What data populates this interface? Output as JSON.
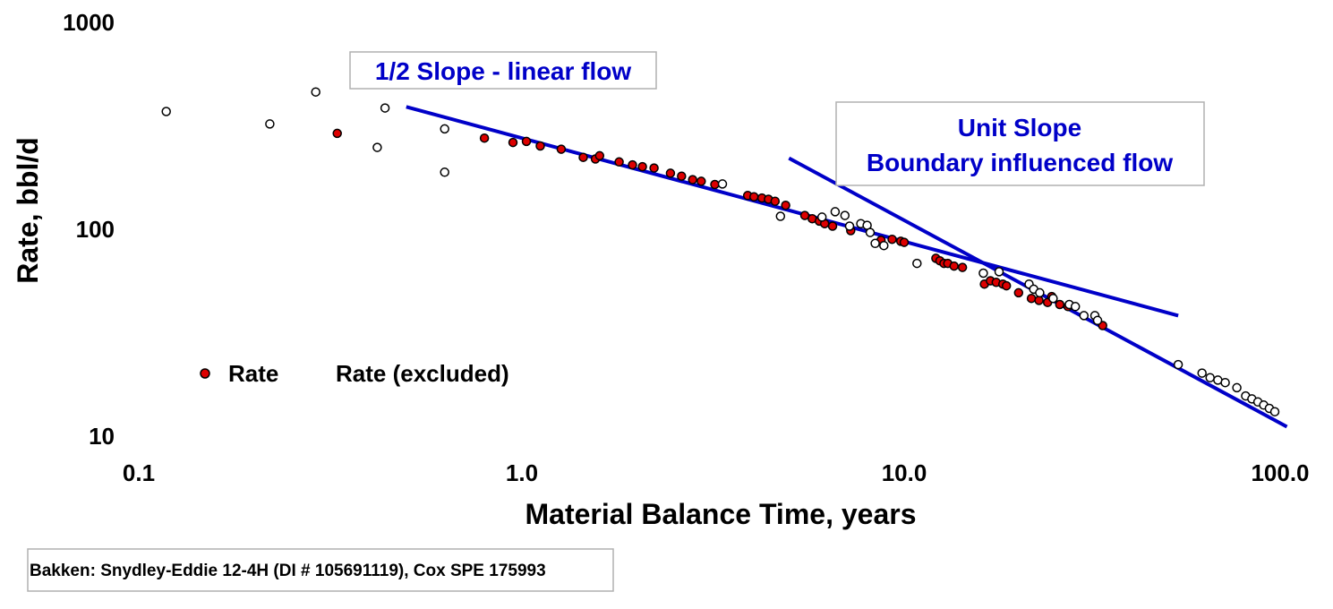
{
  "chart_data": {
    "type": "scatter",
    "xlabel": "Material Balance Time, years",
    "ylabel": "Rate, bbl/d",
    "x_scale": "log",
    "y_scale": "log",
    "xlim": [
      0.1,
      100.0
    ],
    "ylim": [
      10,
      1000
    ],
    "x_ticks": [
      "0.1",
      "1.0",
      "10.0",
      "100.0"
    ],
    "y_ticks": [
      "10",
      "100",
      "1000"
    ],
    "grid": false,
    "legend_position": "bottom-left",
    "colors": {
      "rate": "#dd0000",
      "excluded": "#ffffff",
      "line": "#0000c8"
    },
    "series": [
      {
        "name": "Rate",
        "marker": "filled-circle",
        "points": [
          [
            0.33,
            290
          ],
          [
            0.8,
            275
          ],
          [
            0.95,
            262
          ],
          [
            1.03,
            265
          ],
          [
            1.12,
            252
          ],
          [
            1.27,
            243
          ],
          [
            1.45,
            222
          ],
          [
            1.56,
            218
          ],
          [
            1.6,
            226
          ],
          [
            1.8,
            211
          ],
          [
            1.95,
            204
          ],
          [
            2.07,
            200
          ],
          [
            2.22,
            197
          ],
          [
            2.45,
            186
          ],
          [
            2.62,
            180
          ],
          [
            2.8,
            173
          ],
          [
            2.95,
            170
          ],
          [
            3.2,
            164
          ],
          [
            3.9,
            145
          ],
          [
            4.05,
            143
          ],
          [
            4.25,
            141
          ],
          [
            4.42,
            139
          ],
          [
            4.6,
            136
          ],
          [
            4.9,
            130
          ],
          [
            5.5,
            116
          ],
          [
            5.75,
            112
          ],
          [
            6.0,
            109
          ],
          [
            6.2,
            106
          ],
          [
            6.5,
            103
          ],
          [
            7.25,
            98
          ],
          [
            8.7,
            88
          ],
          [
            9.3,
            89
          ],
          [
            9.8,
            87
          ],
          [
            10.0,
            86
          ],
          [
            12.1,
            72
          ],
          [
            12.4,
            70
          ],
          [
            12.7,
            68
          ],
          [
            13.0,
            68
          ],
          [
            13.5,
            66
          ],
          [
            14.2,
            65
          ],
          [
            16.2,
            54
          ],
          [
            16.8,
            56
          ],
          [
            17.4,
            55
          ],
          [
            18.1,
            54
          ],
          [
            18.5,
            53
          ],
          [
            19.9,
            49
          ],
          [
            21.5,
            46
          ],
          [
            22.5,
            45
          ],
          [
            23.7,
            44
          ],
          [
            24.3,
            47
          ],
          [
            25.5,
            43
          ],
          [
            26.8,
            42
          ],
          [
            33.0,
            34
          ]
        ]
      },
      {
        "name": "Rate (excluded)",
        "marker": "open-circle",
        "points": [
          [
            0.118,
            370
          ],
          [
            0.22,
            322
          ],
          [
            0.29,
            460
          ],
          [
            0.42,
            248
          ],
          [
            0.44,
            385
          ],
          [
            0.63,
            305
          ],
          [
            0.63,
            188
          ],
          [
            3.35,
            165
          ],
          [
            4.75,
            115
          ],
          [
            6.1,
            114
          ],
          [
            6.6,
            121
          ],
          [
            7.0,
            116
          ],
          [
            7.2,
            103
          ],
          [
            7.7,
            106
          ],
          [
            8.0,
            104
          ],
          [
            8.15,
            96
          ],
          [
            8.4,
            85
          ],
          [
            8.85,
            83
          ],
          [
            10.8,
            68
          ],
          [
            16.1,
            61
          ],
          [
            17.7,
            62
          ],
          [
            21.2,
            54
          ],
          [
            21.8,
            51
          ],
          [
            22.6,
            49
          ],
          [
            24.5,
            46
          ],
          [
            27.0,
            43
          ],
          [
            28.0,
            42
          ],
          [
            29.5,
            38
          ],
          [
            31.5,
            38
          ],
          [
            32.0,
            36
          ],
          [
            52.0,
            22
          ],
          [
            60.0,
            20
          ],
          [
            63.0,
            19
          ],
          [
            66.0,
            18.5
          ],
          [
            69.0,
            18
          ],
          [
            74.0,
            17
          ],
          [
            78.0,
            15.5
          ],
          [
            81.0,
            15
          ],
          [
            84.0,
            14.5
          ],
          [
            87.0,
            14
          ],
          [
            90.0,
            13.5
          ],
          [
            93.0,
            13
          ]
        ]
      }
    ],
    "lines": [
      {
        "label": "1/2 Slope - linear flow",
        "from": [
          0.5,
          390
        ],
        "to": [
          52.0,
          38
        ]
      },
      {
        "label": "Unit Slope Boundary influenced flow",
        "from": [
          5.0,
          220
        ],
        "to": [
          100.0,
          11
        ]
      }
    ],
    "annotations": {
      "half_slope": "1/2 Slope - linear flow",
      "unit_slope_line1": "Unit Slope",
      "unit_slope_line2": "Boundary influenced flow"
    },
    "legend": {
      "rate": "Rate",
      "excluded": "Rate (excluded)"
    },
    "source": "Bakken: Snydley-Eddie 12-4H (DI # 105691119), Cox SPE 175993"
  }
}
